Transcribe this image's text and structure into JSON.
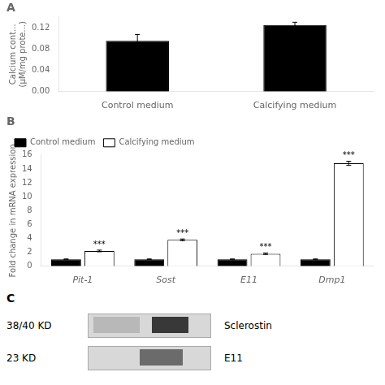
{
  "chart_data": [
    {
      "type": "bar",
      "title": "A",
      "categories": [
        "Control medium",
        "Calcifying medium"
      ],
      "values": [
        0.095,
        0.125
      ],
      "errors": [
        0.012,
        0.005
      ],
      "color": "#000000",
      "ylabel": [
        "Calcium cont...",
        "(μM/mg prote...)"
      ],
      "ylim": [
        0.0,
        0.14
      ],
      "yticks": [
        {
          "value": 0.0,
          "label": "0.00"
        },
        {
          "value": 0.04,
          "label": "0.04"
        },
        {
          "value": 0.08,
          "label": "0.08"
        },
        {
          "value": 0.12,
          "label": "0.12"
        }
      ],
      "grid": false
    },
    {
      "type": "bar",
      "title": "B",
      "categories": [
        "Pit-1",
        "Sost",
        "E11",
        "Dmp1"
      ],
      "series": [
        {
          "name": "Control medium",
          "color": "#000000",
          "values": [
            1.0,
            1.0,
            1.0,
            1.0
          ],
          "errors": [
            0.05,
            0.05,
            0.05,
            0.05
          ]
        },
        {
          "name": "Calcifying medium",
          "color": "#ffffff",
          "values": [
            2.2,
            3.8,
            1.8,
            14.8
          ],
          "errors": [
            0.12,
            0.12,
            0.1,
            0.3
          ]
        }
      ],
      "annotations": [
        {
          "category": "Pit-1",
          "series": "Calcifying medium",
          "text": "***"
        },
        {
          "category": "Sost",
          "series": "Calcifying medium",
          "text": "***"
        },
        {
          "category": "E11",
          "series": "Calcifying medium",
          "text": "***"
        },
        {
          "category": "Dmp1",
          "series": "Calcifying medium",
          "text": "***"
        }
      ],
      "ylabel": "Fold change in mRNA expression",
      "ylim": [
        0,
        16
      ],
      "yticks": [
        0,
        2,
        4,
        6,
        8,
        10,
        12,
        14,
        16
      ],
      "legend": "upper left",
      "grid": false
    },
    {
      "type": "blot",
      "title": "C",
      "annotations": [
        "38/40 KD",
        "Sclerostin",
        "23 KD",
        "E11"
      ]
    }
  ]
}
